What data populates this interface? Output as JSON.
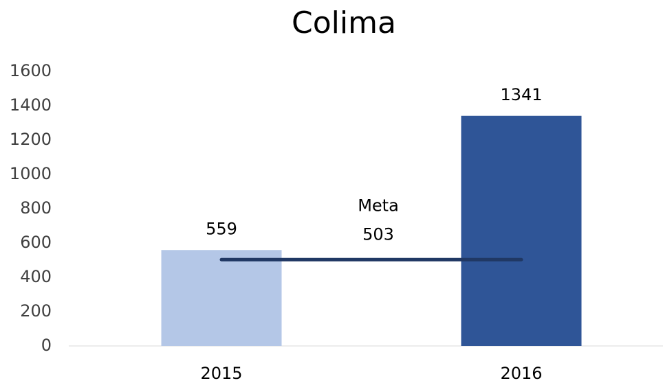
{
  "chart_data": {
    "type": "bar",
    "title": "Colima",
    "categories": [
      "2015",
      "2016"
    ],
    "values": [
      559,
      1341
    ],
    "colors": [
      "#b4c7e7",
      "#2f5597"
    ],
    "target": {
      "name": "Meta",
      "value": 503,
      "color": "#203864"
    },
    "ylim": [
      0,
      1600
    ],
    "yticks": [
      0,
      200,
      400,
      600,
      800,
      1000,
      1200,
      1400,
      1600
    ],
    "grid": false
  }
}
